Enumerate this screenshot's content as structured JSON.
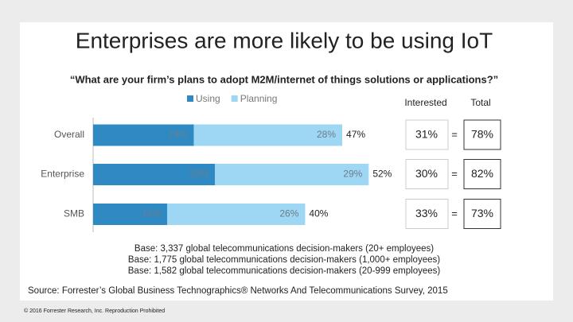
{
  "title": "Enterprises are more likely to be using IoT",
  "subtitle": "“What are your firm’s plans to adopt M2M/internet of things solutions or applications?”",
  "chart_data": {
    "type": "bar",
    "orientation": "horizontal",
    "stacked": true,
    "categories": [
      "Overall",
      "Enterprise",
      "SMB"
    ],
    "series": [
      {
        "name": "Using",
        "color": "#2f8ac4",
        "values": [
          19,
          23,
          14
        ],
        "value_labels": [
          "19%",
          "23%",
          "14%"
        ]
      },
      {
        "name": "Planning",
        "color": "#9dd7f3",
        "values": [
          28,
          29,
          26
        ],
        "value_labels": [
          "28%",
          "29%",
          "26%"
        ]
      }
    ],
    "totals": {
      "values": [
        47,
        52,
        40
      ],
      "value_labels": [
        "47%",
        "52%",
        "40%"
      ]
    }
  },
  "columns": {
    "interested": {
      "header": "Interested",
      "values": [
        31,
        30,
        33
      ],
      "value_labels": [
        "31%",
        "30%",
        "33%"
      ]
    },
    "equals": "=",
    "total": {
      "header": "Total",
      "values": [
        78,
        82,
        73
      ],
      "value_labels": [
        "78%",
        "82%",
        "73%"
      ]
    }
  },
  "notes": [
    "Base: 3,337 global telecommunications decision-makers (20+ employees)",
    "Base: 1,775 global telecommunications decision-makers (1,000+ employees)",
    "Base: 1,582 global telecommunications decision-makers (20-999 employees)"
  ],
  "source": "Source: Forrester’s Global Business Technographics® Networks And Telecommunications Survey, 2015",
  "footer": "© 2016 Forrester Research, Inc. Reproduction Prohibited"
}
